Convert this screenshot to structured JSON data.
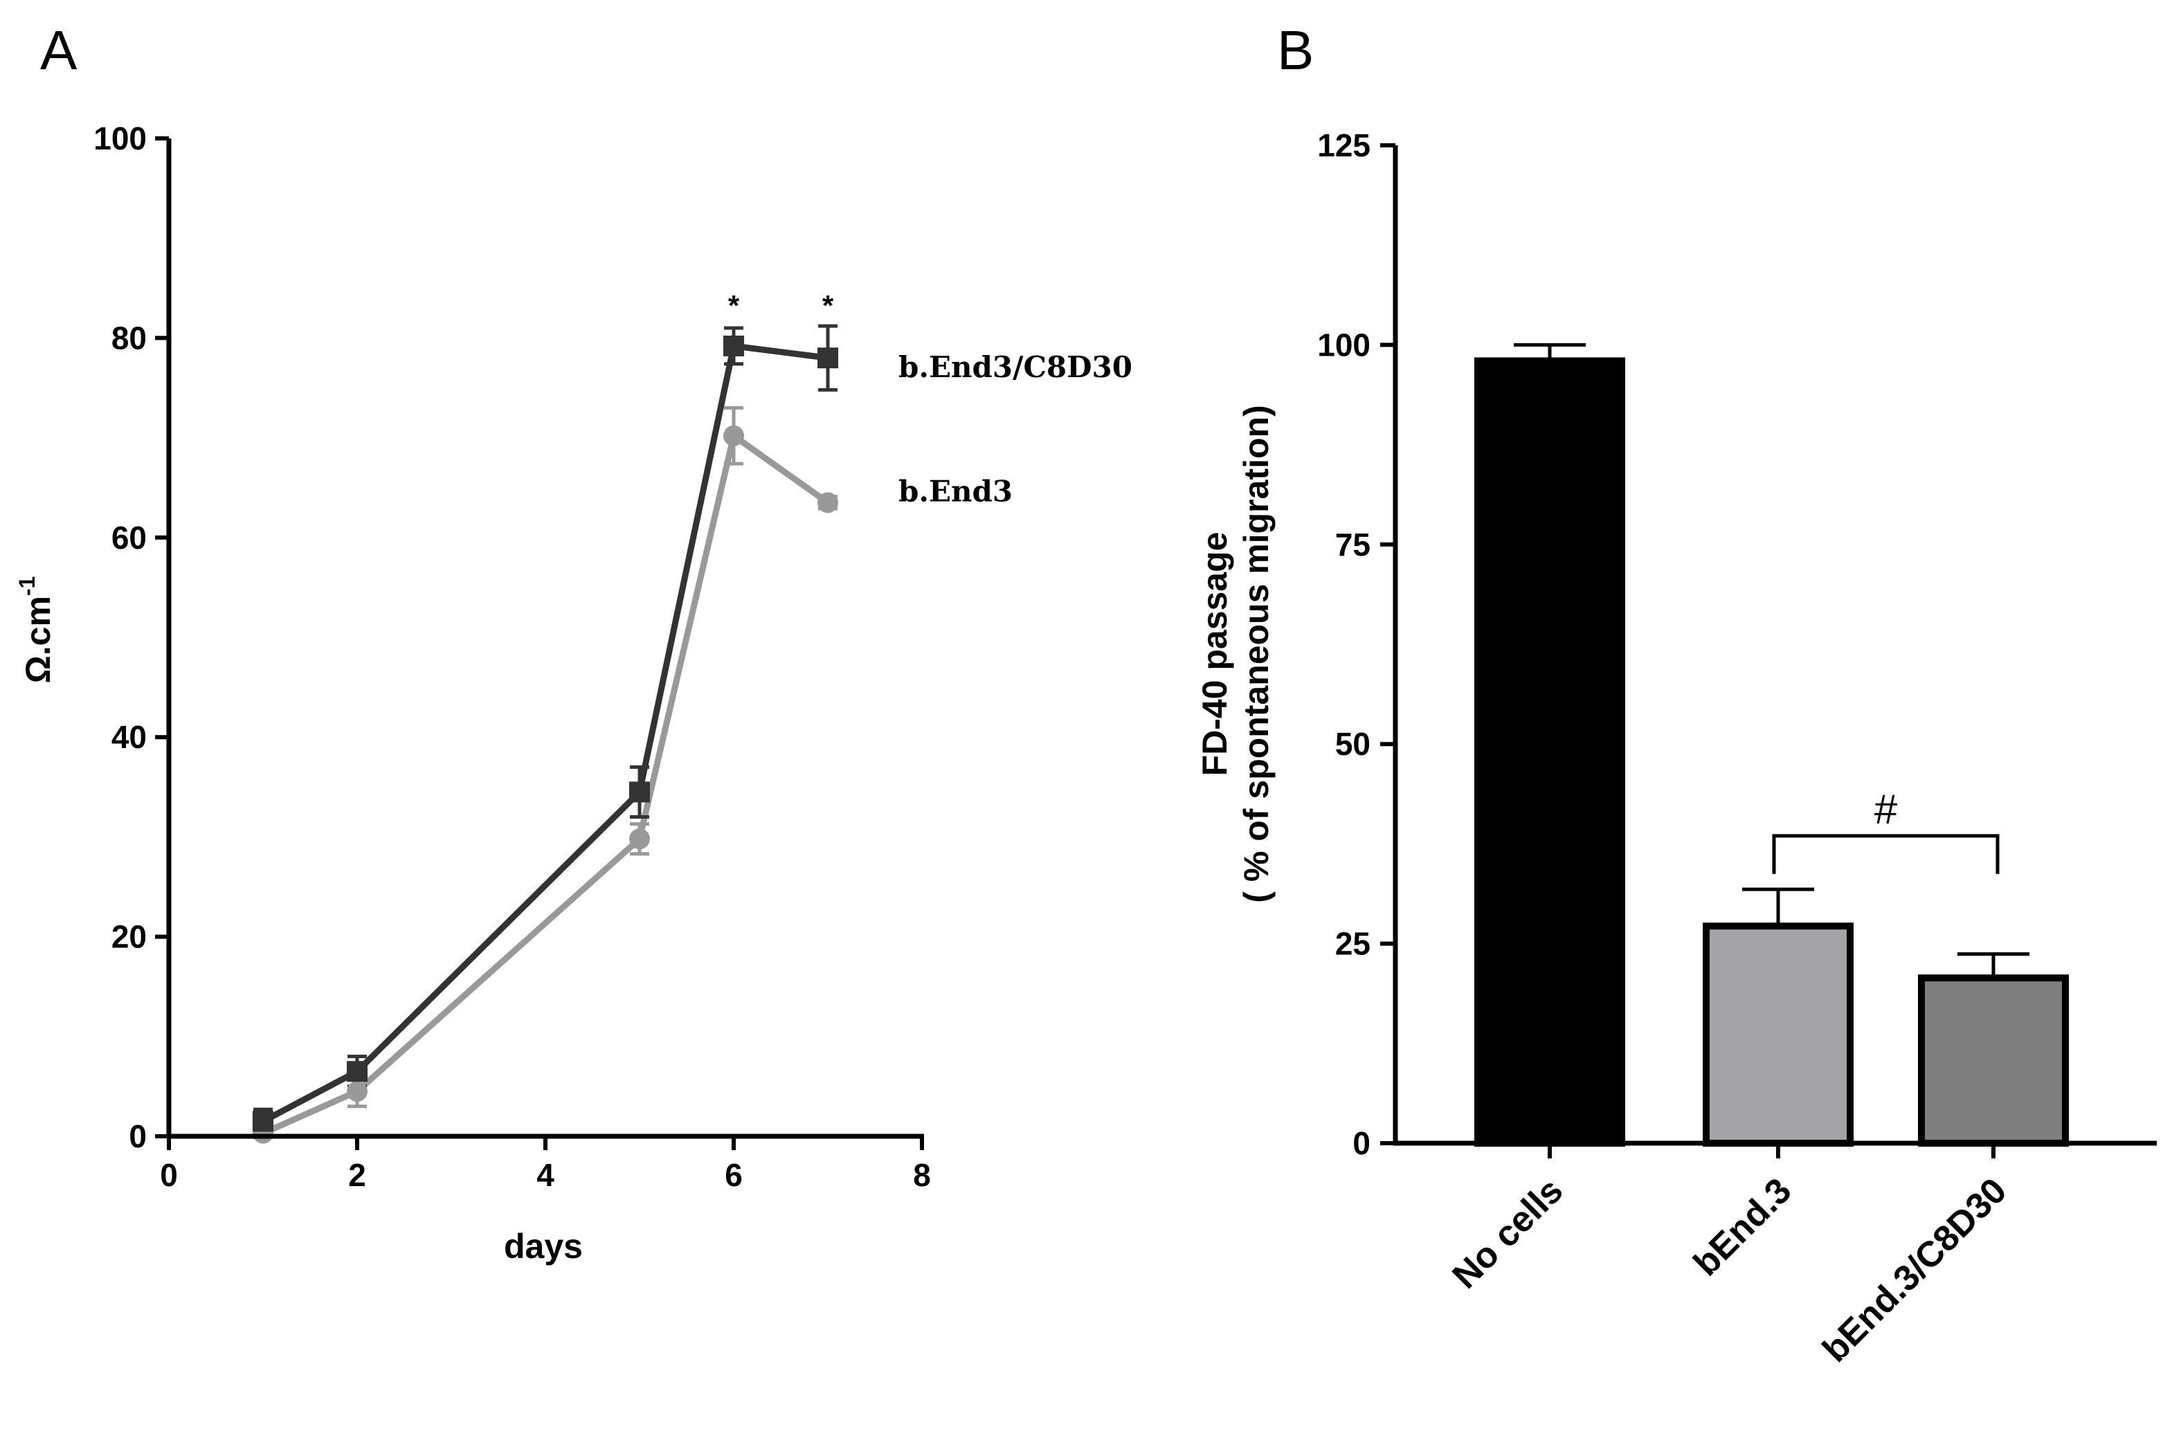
{
  "chart_data": [
    {
      "panel": "A",
      "type": "line",
      "xlabel": "days",
      "ylabel": "Ω.cm",
      "ylabel_superscript": "-1",
      "xlim": [
        0,
        8
      ],
      "ylim": [
        0,
        100
      ],
      "xticks": [
        0,
        2,
        4,
        6,
        8
      ],
      "yticks": [
        0,
        20,
        40,
        60,
        80,
        100
      ],
      "series": [
        {
          "name": "b.End3/C8D30",
          "color": "#333333",
          "marker": "square",
          "x": [
            1,
            2,
            5,
            6,
            7
          ],
          "values": [
            1.5,
            6.5,
            34.5,
            79.2,
            78.0
          ],
          "errors": [
            1.2,
            1.5,
            2.5,
            1.8,
            3.2
          ]
        },
        {
          "name": "b.End3",
          "color": "#999999",
          "marker": "circle",
          "x": [
            1,
            2,
            5,
            6,
            7
          ],
          "values": [
            0.3,
            4.5,
            29.8,
            70.2,
            63.5
          ],
          "errors": [
            0.4,
            1.5,
            1.5,
            2.8,
            0.6
          ]
        }
      ],
      "annotations": [
        {
          "text": "*",
          "x": 6,
          "y": 83.5
        },
        {
          "text": "*",
          "x": 7,
          "y": 83.5
        }
      ]
    },
    {
      "panel": "B",
      "type": "bar",
      "ylabel_line1": "FD-40 passage",
      "ylabel_line2": "( % of spontaneous migration)",
      "ylim": [
        0,
        125
      ],
      "yticks": [
        0,
        25,
        50,
        75,
        100,
        125
      ],
      "categories": [
        "No cells",
        "bEnd.3",
        "bEnd.3/C8D30"
      ],
      "values": [
        98,
        27.2,
        20.7
      ],
      "errors": [
        2.0,
        4.6,
        3.0
      ],
      "colors": [
        "#000000",
        "#a4a4a8",
        "#7f7f7f"
      ],
      "annotations": [
        {
          "text": "#",
          "from": "bEnd.3",
          "to": "bEnd.3/C8D30",
          "y": 38.5
        }
      ]
    }
  ]
}
